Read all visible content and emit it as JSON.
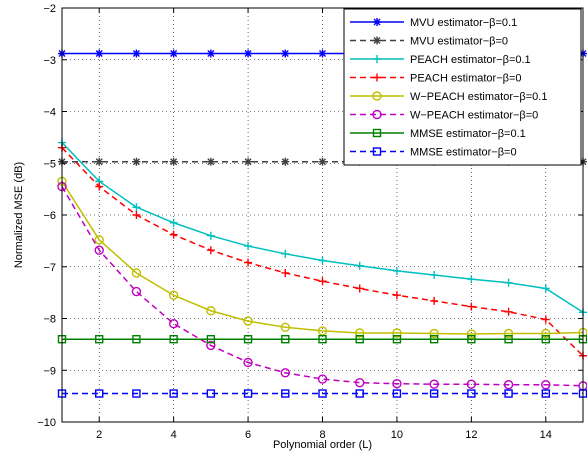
{
  "chart_data": {
    "type": "line",
    "xlabel": "Polynomial order (L)",
    "ylabel": "Normalized MSE (dB)",
    "xlim": [
      1,
      15
    ],
    "ylim": [
      -10,
      -2
    ],
    "xticks": [
      2,
      4,
      6,
      8,
      10,
      12,
      14
    ],
    "yticks": [
      -10,
      -9,
      -8,
      -7,
      -6,
      -5,
      -4,
      -3,
      -2
    ],
    "grid": "dotted",
    "legend_position": "top-right",
    "x": [
      1,
      2,
      3,
      4,
      5,
      6,
      7,
      8,
      9,
      10,
      11,
      12,
      13,
      14,
      15
    ],
    "series": [
      {
        "name": "MVU estimator−β=0.1",
        "color": "#0000ff",
        "line": "solid",
        "marker": "asterisk",
        "values": [
          -2.88,
          -2.88,
          -2.88,
          -2.88,
          -2.88,
          -2.88,
          -2.88,
          -2.88,
          -2.88,
          -2.88,
          -2.88,
          -2.88,
          -2.88,
          -2.88,
          -2.88
        ]
      },
      {
        "name": "MVU estimator−β=0",
        "color": "#404040",
        "line": "dashed",
        "marker": "asterisk",
        "values": [
          -4.97,
          -4.97,
          -4.97,
          -4.97,
          -4.97,
          -4.97,
          -4.97,
          -4.97,
          -4.97,
          -4.97,
          -4.97,
          -4.97,
          -4.97,
          -4.97,
          -4.97
        ]
      },
      {
        "name": "PEACH estimator−β=0.1",
        "color": "#00bfbf",
        "line": "solid",
        "marker": "plus",
        "values": [
          -4.6,
          -5.35,
          -5.85,
          -6.15,
          -6.4,
          -6.6,
          -6.75,
          -6.88,
          -6.98,
          -7.08,
          -7.16,
          -7.24,
          -7.31,
          -7.42,
          -7.88
        ]
      },
      {
        "name": "PEACH estimator−β=0",
        "color": "#ff0000",
        "line": "dashed",
        "marker": "plus",
        "values": [
          -4.7,
          -5.45,
          -6.0,
          -6.38,
          -6.68,
          -6.92,
          -7.12,
          -7.28,
          -7.42,
          -7.55,
          -7.66,
          -7.77,
          -7.87,
          -8.02,
          -8.72
        ]
      },
      {
        "name": "W−PEACH estimator−β=0.1",
        "color": "#bfbf00",
        "line": "solid",
        "marker": "circle",
        "values": [
          -5.35,
          -6.48,
          -7.12,
          -7.55,
          -7.85,
          -8.05,
          -8.17,
          -8.24,
          -8.28,
          -8.28,
          -8.29,
          -8.3,
          -8.29,
          -8.29,
          -8.27
        ]
      },
      {
        "name": "W−PEACH estimator−β=0",
        "color": "#bf00bf",
        "line": "dashed",
        "marker": "circle",
        "values": [
          -5.45,
          -6.68,
          -7.48,
          -8.1,
          -8.52,
          -8.85,
          -9.05,
          -9.17,
          -9.24,
          -9.26,
          -9.27,
          -9.27,
          -9.28,
          -9.28,
          -9.3
        ]
      },
      {
        "name": "MMSE estimator−β=0.1",
        "color": "#008000",
        "line": "solid",
        "marker": "square",
        "values": [
          -8.4,
          -8.4,
          -8.4,
          -8.4,
          -8.4,
          -8.4,
          -8.4,
          -8.4,
          -8.4,
          -8.4,
          -8.4,
          -8.4,
          -8.4,
          -8.4,
          -8.4
        ]
      },
      {
        "name": "MMSE estimator−β=0",
        "color": "#0000ff",
        "line": "dashed",
        "marker": "square",
        "values": [
          -9.45,
          -9.45,
          -9.45,
          -9.45,
          -9.45,
          -9.45,
          -9.45,
          -9.45,
          -9.45,
          -9.45,
          -9.45,
          -9.45,
          -9.45,
          -9.45,
          -9.45
        ]
      }
    ]
  }
}
